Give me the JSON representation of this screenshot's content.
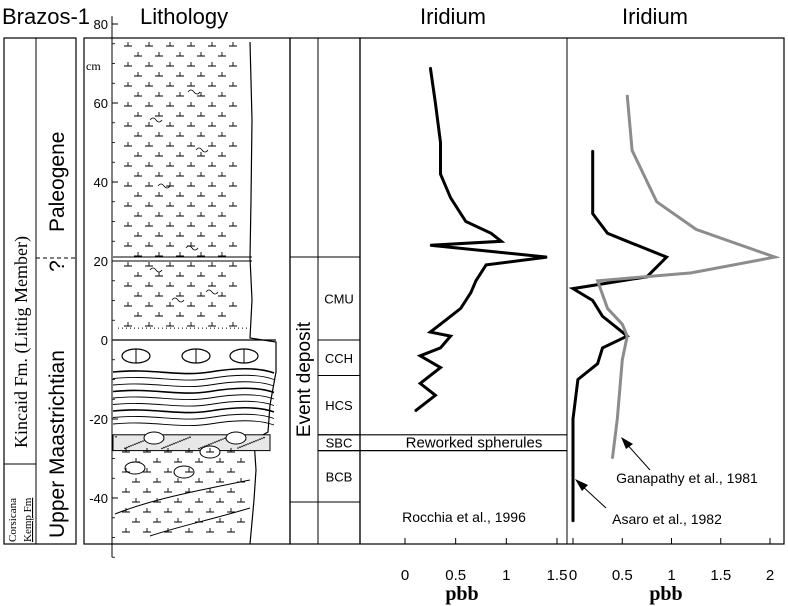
{
  "chart_data": {
    "type": "line",
    "section_title": "Brazos-1",
    "lithology_label": "Lithology",
    "stratigraphy": {
      "formation": "Kincaid Fm. (Littig Member)",
      "system_upper": "Paleogene",
      "system_lower": "Upper Maastrichtian",
      "boundary_mark": "?",
      "lower_formation_1": "Corsicana",
      "lower_formation_2": "Kemp Fm"
    },
    "depth_axis": {
      "unit": "cm",
      "range": [
        -55,
        82
      ],
      "ticks": [
        80,
        60,
        40,
        20,
        0,
        -20,
        -40
      ],
      "tick_labels": [
        "80",
        "60",
        "40",
        "20",
        "0",
        "-20",
        "-40"
      ]
    },
    "event_deposit": {
      "label": "Event deposit",
      "top": 21,
      "bottom": -41,
      "units": [
        {
          "label": "CMU",
          "top": 21,
          "bottom": 0
        },
        {
          "label": "CCH",
          "top": 0,
          "bottom": -9
        },
        {
          "label": "HCS",
          "top": -9,
          "bottom": -24
        },
        {
          "label": "SBC",
          "top": -24,
          "bottom": -28
        },
        {
          "label": "BCB",
          "top": -28,
          "bottom": -41
        }
      ]
    },
    "spherule_band": {
      "label": "Reworked spherules",
      "top": -24,
      "bottom": -28
    },
    "panels": [
      {
        "title": "Iridium",
        "xlabel": "pbb",
        "xlim": [
          -0.2,
          1.5
        ],
        "xticks": [
          0,
          0.5,
          1,
          1.5
        ],
        "xtick_labels": [
          "0",
          "0.5",
          "1",
          "1.5"
        ],
        "series": [
          {
            "name": "Rocchia et al., 1996",
            "color": "#000000",
            "points": [
              [
                0.25,
                69
              ],
              [
                0.3,
                60
              ],
              [
                0.35,
                50
              ],
              [
                0.35,
                42
              ],
              [
                0.45,
                36
              ],
              [
                0.6,
                30
              ],
              [
                0.85,
                27
              ],
              [
                0.95,
                25
              ],
              [
                0.25,
                24
              ],
              [
                1.4,
                21
              ],
              [
                0.8,
                19
              ],
              [
                0.7,
                15
              ],
              [
                0.65,
                12
              ],
              [
                0.55,
                8
              ],
              [
                0.4,
                5
              ],
              [
                0.25,
                2
              ],
              [
                0.45,
                1
              ],
              [
                0.35,
                -2
              ],
              [
                0.15,
                -4
              ],
              [
                0.35,
                -7
              ],
              [
                0.15,
                -11
              ],
              [
                0.3,
                -14
              ],
              [
                0.1,
                -18
              ]
            ]
          }
        ]
      },
      {
        "title": "Iridium",
        "xlabel": "pbb",
        "xlim": [
          -0.02,
          2.05
        ],
        "xticks": [
          0,
          0.5,
          1,
          1.5,
          2
        ],
        "xtick_labels": [
          "0",
          "0.5",
          "1",
          "1.5",
          "2"
        ],
        "series": [
          {
            "name": "Asaro et al., 1982",
            "color": "#000000",
            "points": [
              [
                0.2,
                48
              ],
              [
                0.2,
                32
              ],
              [
                0.35,
                27
              ],
              [
                0.55,
                25
              ],
              [
                0.95,
                21
              ],
              [
                0.75,
                16
              ],
              [
                0.0,
                13
              ],
              [
                0.2,
                10
              ],
              [
                0.3,
                6
              ],
              [
                0.45,
                3
              ],
              [
                0.55,
                1
              ],
              [
                0.3,
                -2
              ],
              [
                0.25,
                -6
              ],
              [
                0.05,
                -10
              ],
              [
                0.0,
                -20
              ],
              [
                0.0,
                -42
              ],
              [
                0.0,
                -46
              ]
            ]
          },
          {
            "name": "Ganapathy et al., 1981",
            "color": "#8c8c8c",
            "points": [
              [
                0.55,
                62
              ],
              [
                0.6,
                48
              ],
              [
                0.85,
                35
              ],
              [
                1.25,
                28
              ],
              [
                2.05,
                21
              ],
              [
                1.2,
                17
              ],
              [
                0.25,
                15
              ],
              [
                0.35,
                8
              ],
              [
                0.5,
                4
              ],
              [
                0.55,
                1
              ],
              [
                0.5,
                -5
              ],
              [
                0.45,
                -20
              ],
              [
                0.4,
                -30
              ]
            ]
          }
        ]
      }
    ],
    "annotations": {
      "rocchia": "Rocchia et al., 1996",
      "ganapathy": "Ganapathy et al., 1981",
      "asaro": "Asaro et al., 1982"
    }
  }
}
